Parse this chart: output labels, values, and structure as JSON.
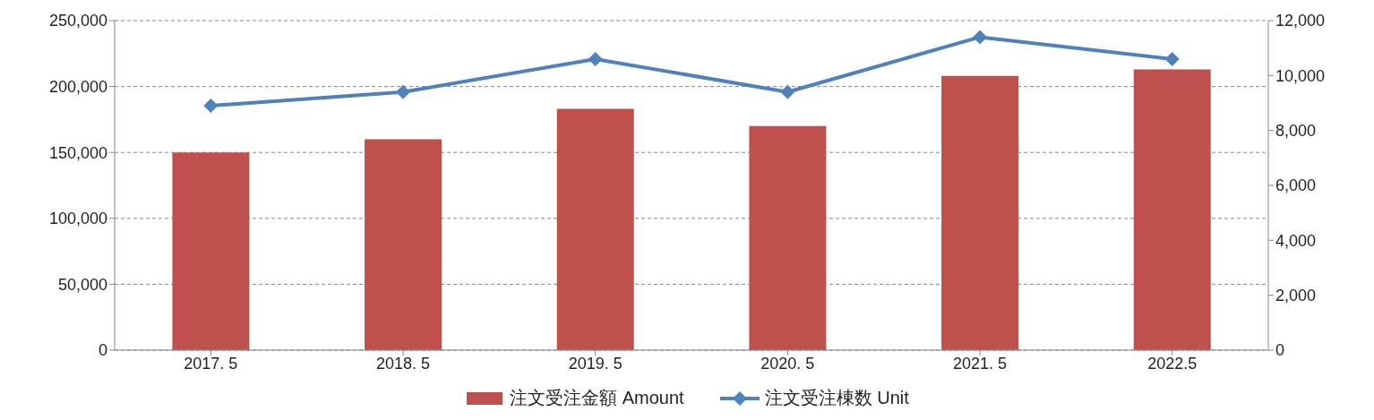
{
  "chart_data": {
    "type": "bar",
    "categories": [
      "2017. 5",
      "2018. 5",
      "2019. 5",
      "2020. 5",
      "2021. 5",
      "2022.5"
    ],
    "series": [
      {
        "name": "注文受注金額 Amount",
        "color": "#c0504d",
        "values": [
          150000,
          160000,
          183000,
          170000,
          208000,
          213000
        ]
      },
      {
        "name": "注文受注棟数 Unit",
        "type": "line",
        "axis": "y2",
        "color": "#4f81bd",
        "marker": "diamond",
        "values": [
          8900,
          9400,
          10600,
          9400,
          11400,
          10600
        ]
      }
    ],
    "ylim": [
      0,
      250000
    ],
    "yticks": [
      0,
      {
        "value": 50000,
        "label": "50,000"
      },
      {
        "value": 100000,
        "label": "100,000"
      },
      {
        "value": 150000,
        "label": "150,000"
      },
      {
        "value": 200000,
        "label": "200,000"
      },
      {
        "value": 250000,
        "label": "250,000"
      }
    ],
    "y2lim": [
      0,
      12000
    ],
    "y2ticks": [
      0,
      {
        "value": 2000,
        "label": "2,000"
      },
      {
        "value": 4000,
        "label": "4,000"
      },
      {
        "value": 6000,
        "label": "6,000"
      },
      {
        "value": 8000,
        "label": "8,000"
      },
      {
        "value": 10000,
        "label": "10,000"
      },
      {
        "value": 12000,
        "label": "12,000"
      }
    ],
    "grid": "y",
    "legend": "bottom"
  }
}
